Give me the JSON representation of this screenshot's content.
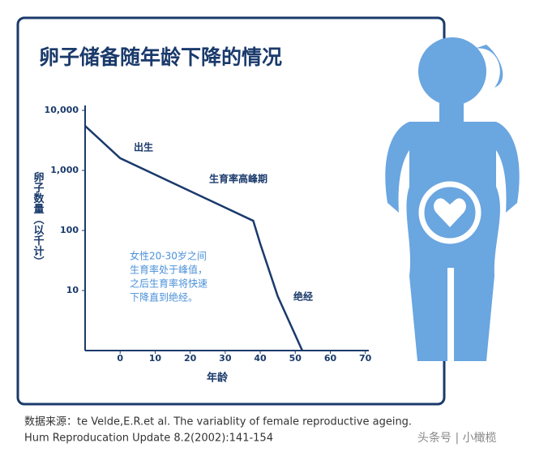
{
  "chart_data": {
    "type": "line",
    "title": "卵子储备随年龄下降的情况",
    "x_label": "年龄",
    "y_label": "卵子数量（以千计）",
    "x": [
      -10,
      0,
      38,
      40,
      45,
      52
    ],
    "values": [
      5500,
      1600,
      145,
      60,
      8,
      1
    ],
    "color": "#1a3a6b",
    "yscale": "log",
    "xlim": [
      -10,
      71
    ],
    "xticks": [
      0,
      10,
      20,
      30,
      40,
      50,
      60,
      70
    ],
    "ylim": [
      1,
      10000
    ],
    "yticks": [
      10,
      100,
      {
        "value": 1000,
        "label": "1,000"
      },
      {
        "value": 10000,
        "label": "10,000"
      }
    ],
    "annotations": [
      "出生",
      "生育率高峰期",
      "绝经"
    ],
    "note": [
      "女性20-30岁之间",
      "生育率处于峰值，",
      "之后生育率将快速",
      "下降直到绝经。"
    ]
  },
  "source": [
    "数据来源：te Velde,E.R.et al. The variablity of female reproductive ageing.",
    "Hum Reproducation Update 8.2(2002):141-154"
  ],
  "watermark": "头条号 | 小橄榄"
}
